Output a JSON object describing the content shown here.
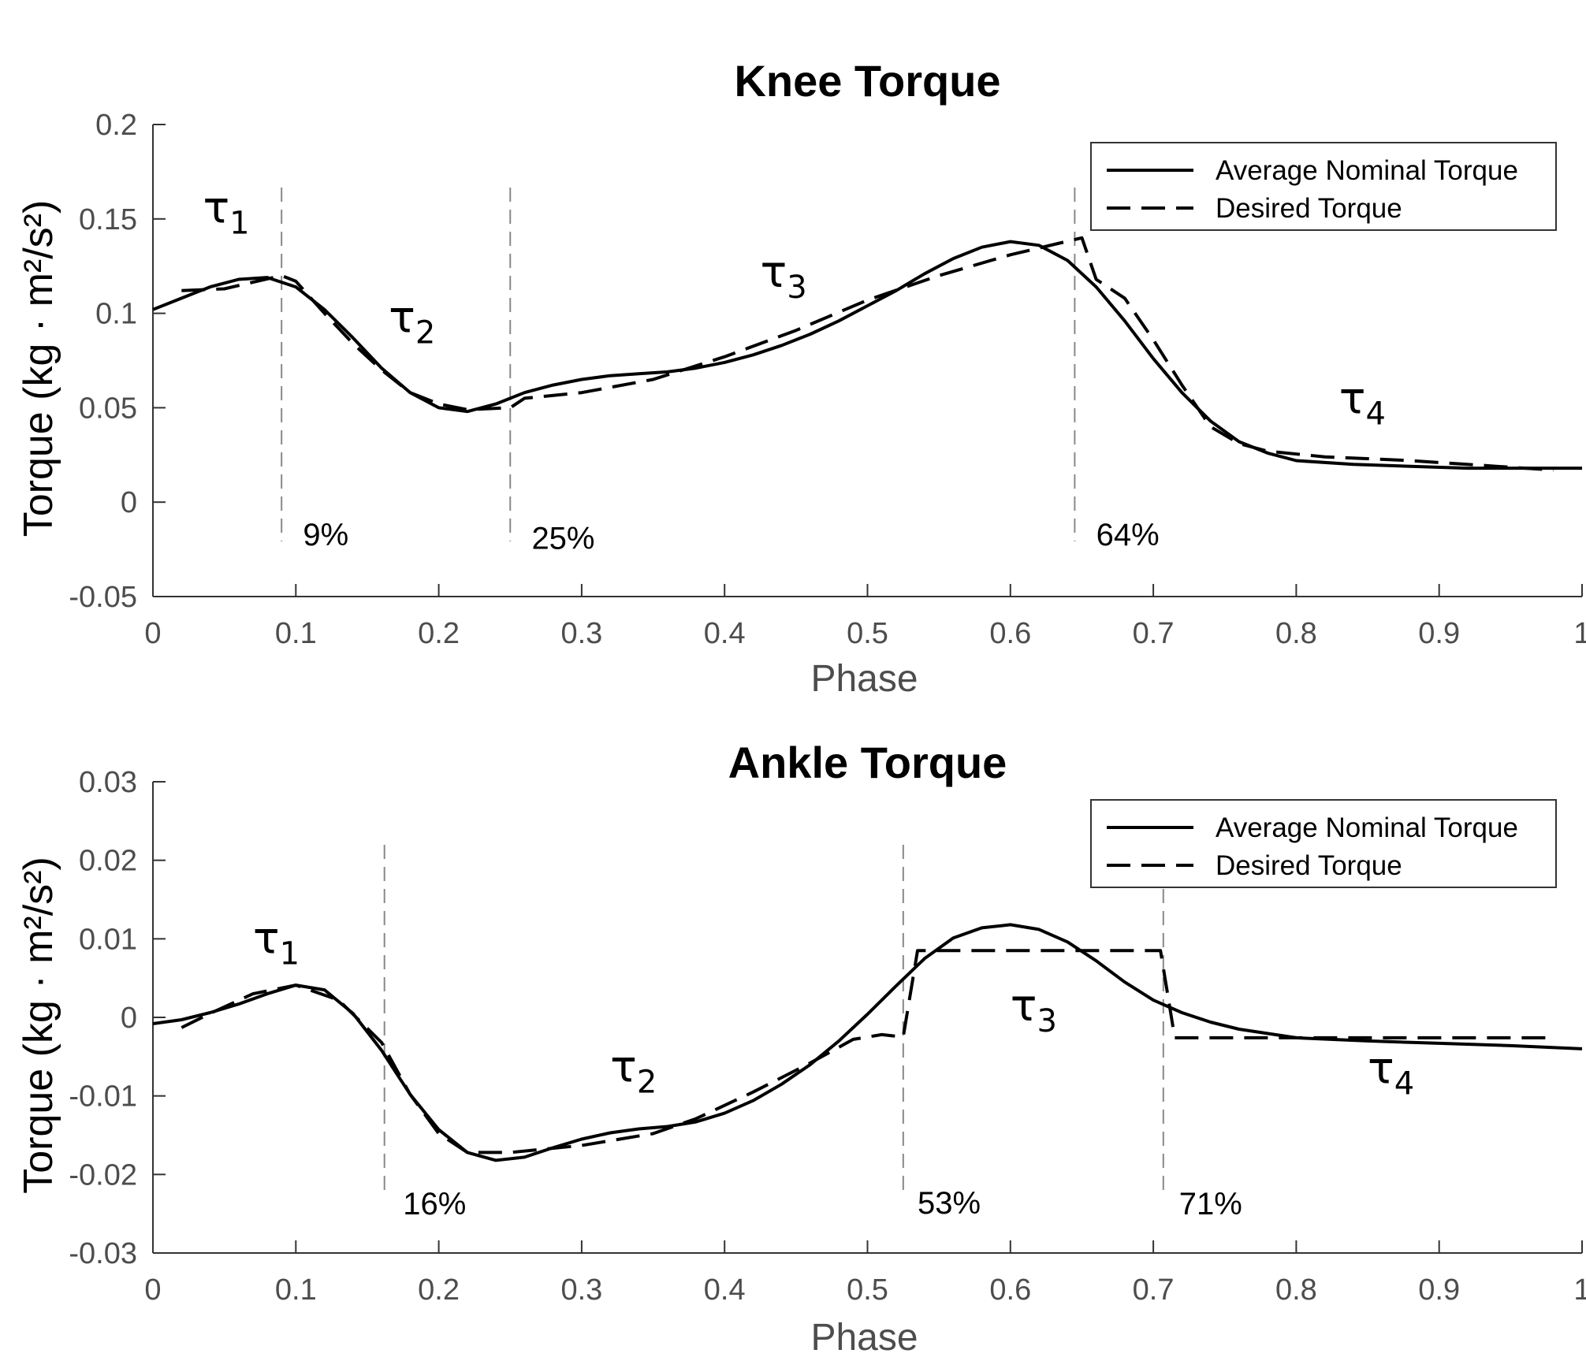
{
  "chart_data": [
    {
      "type": "line",
      "title": "Knee Torque",
      "xlabel": "Phase",
      "ylabel": "Torque (kg · m²/s²)",
      "xlim": [
        0,
        1
      ],
      "ylim": [
        -0.05,
        0.2
      ],
      "xticks": [
        "0",
        "0.1",
        "0.2",
        "0.3",
        "0.4",
        "0.5",
        "0.6",
        "0.7",
        "0.8",
        "0.9",
        "1"
      ],
      "yticks": [
        "-0.05",
        "0",
        "0.05",
        "0.1",
        "0.15",
        "0.2"
      ],
      "xtick_values": [
        0,
        0.1,
        0.2,
        0.3,
        0.4,
        0.5,
        0.6,
        0.7,
        0.8,
        0.9,
        1
      ],
      "ytick_values": [
        -0.05,
        0,
        0.05,
        0.1,
        0.15,
        0.2
      ],
      "legend": {
        "position": "top-right",
        "entries": [
          "Average Nominal Torque",
          "Desired Torque"
        ]
      },
      "series": [
        {
          "name": "Average Nominal Torque",
          "style": "solid",
          "x": [
            0,
            0.02,
            0.04,
            0.06,
            0.08,
            0.1,
            0.12,
            0.14,
            0.16,
            0.18,
            0.2,
            0.22,
            0.24,
            0.26,
            0.28,
            0.3,
            0.32,
            0.34,
            0.36,
            0.38,
            0.4,
            0.42,
            0.44,
            0.46,
            0.48,
            0.5,
            0.52,
            0.54,
            0.56,
            0.58,
            0.6,
            0.62,
            0.64,
            0.66,
            0.68,
            0.7,
            0.72,
            0.74,
            0.76,
            0.78,
            0.8,
            0.84,
            0.88,
            0.92,
            0.96,
            1.0
          ],
          "y": [
            0.102,
            0.108,
            0.114,
            0.118,
            0.119,
            0.114,
            0.102,
            0.087,
            0.071,
            0.058,
            0.05,
            0.048,
            0.052,
            0.058,
            0.062,
            0.065,
            0.067,
            0.068,
            0.069,
            0.071,
            0.074,
            0.078,
            0.083,
            0.089,
            0.096,
            0.104,
            0.112,
            0.121,
            0.129,
            0.135,
            0.138,
            0.136,
            0.128,
            0.114,
            0.096,
            0.076,
            0.058,
            0.043,
            0.032,
            0.026,
            0.022,
            0.02,
            0.019,
            0.018,
            0.018,
            0.018
          ]
        },
        {
          "name": "Desired Torque",
          "style": "dashed",
          "x": [
            0.02,
            0.05,
            0.09,
            0.1,
            0.12,
            0.14,
            0.16,
            0.18,
            0.2,
            0.22,
            0.25,
            0.26,
            0.3,
            0.35,
            0.4,
            0.45,
            0.5,
            0.55,
            0.6,
            0.65,
            0.66,
            0.68,
            0.7,
            0.72,
            0.74,
            0.76,
            0.78,
            0.82,
            0.88,
            0.94,
            0.98
          ],
          "y": [
            0.112,
            0.113,
            0.12,
            0.117,
            0.1,
            0.084,
            0.07,
            0.058,
            0.052,
            0.049,
            0.05,
            0.055,
            0.058,
            0.065,
            0.077,
            0.091,
            0.107,
            0.12,
            0.131,
            0.14,
            0.118,
            0.108,
            0.086,
            0.062,
            0.04,
            0.031,
            0.027,
            0.024,
            0.022,
            0.019,
            0.017
          ]
        }
      ],
      "vlines": [
        0.09,
        0.25,
        0.645
      ],
      "annotations": [
        {
          "text": "9%",
          "x": 0.105,
          "y": -0.017
        },
        {
          "text": "25%",
          "x": 0.265,
          "y": -0.019
        },
        {
          "text": "64%",
          "x": 0.66,
          "y": -0.017
        }
      ],
      "segment_labels": [
        {
          "symbol": "τ",
          "sub": "1",
          "x": 0.035,
          "y": 0.148
        },
        {
          "symbol": "τ",
          "sub": "2",
          "x": 0.165,
          "y": 0.09
        },
        {
          "symbol": "τ",
          "sub": "3",
          "x": 0.425,
          "y": 0.114
        },
        {
          "symbol": "τ",
          "sub": "4",
          "x": 0.83,
          "y": 0.047
        }
      ]
    },
    {
      "type": "line",
      "title": "Ankle Torque",
      "xlabel": "Phase",
      "ylabel": "Torque (kg · m²/s²)",
      "xlim": [
        0,
        1
      ],
      "ylim": [
        -0.03,
        0.03
      ],
      "xticks": [
        "0",
        "0.1",
        "0.2",
        "0.3",
        "0.4",
        "0.5",
        "0.6",
        "0.7",
        "0.8",
        "0.9",
        "1"
      ],
      "yticks": [
        "-0.03",
        "-0.02",
        "-0.01",
        "0",
        "0.01",
        "0.02",
        "0.03"
      ],
      "xtick_values": [
        0,
        0.1,
        0.2,
        0.3,
        0.4,
        0.5,
        0.6,
        0.7,
        0.8,
        0.9,
        1
      ],
      "ytick_values": [
        -0.03,
        -0.02,
        -0.01,
        0,
        0.01,
        0.02,
        0.03
      ],
      "legend": {
        "position": "top-right",
        "entries": [
          "Average Nominal Torque",
          "Desired Torque"
        ]
      },
      "series": [
        {
          "name": "Average Nominal Torque",
          "style": "solid",
          "x": [
            0,
            0.02,
            0.04,
            0.06,
            0.08,
            0.1,
            0.12,
            0.14,
            0.16,
            0.18,
            0.2,
            0.22,
            0.24,
            0.26,
            0.28,
            0.3,
            0.32,
            0.34,
            0.36,
            0.38,
            0.4,
            0.42,
            0.44,
            0.46,
            0.48,
            0.5,
            0.52,
            0.54,
            0.56,
            0.58,
            0.6,
            0.62,
            0.64,
            0.66,
            0.68,
            0.7,
            0.72,
            0.74,
            0.76,
            0.8,
            0.85,
            0.9,
            0.95,
            1.0
          ],
          "y": [
            -0.0008,
            -0.0003,
            0.0006,
            0.0017,
            0.003,
            0.0041,
            0.0035,
            0.0005,
            -0.0042,
            -0.0098,
            -0.0143,
            -0.0172,
            -0.0182,
            -0.0178,
            -0.0166,
            -0.0155,
            -0.0147,
            -0.0142,
            -0.0139,
            -0.0133,
            -0.0122,
            -0.0106,
            -0.0085,
            -0.006,
            -0.003,
            0.0004,
            0.004,
            0.0075,
            0.0101,
            0.0114,
            0.0118,
            0.0112,
            0.0096,
            0.0072,
            0.0045,
            0.0022,
            0.0006,
            -0.0006,
            -0.0015,
            -0.0026,
            -0.003,
            -0.0033,
            -0.0036,
            -0.004
          ]
        },
        {
          "name": "Desired Torque",
          "style": "dashed",
          "x": [
            0.02,
            0.04,
            0.07,
            0.1,
            0.13,
            0.16,
            0.18,
            0.2,
            0.22,
            0.25,
            0.3,
            0.35,
            0.38,
            0.42,
            0.46,
            0.49,
            0.51,
            0.525,
            0.535,
            0.6,
            0.705,
            0.715,
            0.8,
            0.9,
            0.98
          ],
          "y": [
            -0.0013,
            0.0005,
            0.003,
            0.0041,
            0.0022,
            -0.0032,
            -0.0098,
            -0.0148,
            -0.0172,
            -0.0172,
            -0.0163,
            -0.0148,
            -0.0129,
            -0.0095,
            -0.0058,
            -0.0028,
            -0.0022,
            -0.0025,
            0.0085,
            0.0085,
            0.0085,
            -0.0026,
            -0.0026,
            -0.0026,
            -0.0026
          ]
        }
      ],
      "vlines": [
        0.162,
        0.525,
        0.707
      ],
      "annotations": [
        {
          "text": "16%",
          "x": 0.175,
          "y": -0.0237
        },
        {
          "text": "53%",
          "x": 0.535,
          "y": -0.0236
        },
        {
          "text": "71%",
          "x": 0.718,
          "y": -0.0237
        }
      ],
      "segment_labels": [
        {
          "symbol": "τ",
          "sub": "1",
          "x": 0.07,
          "y": 0.0082
        },
        {
          "symbol": "τ",
          "sub": "2",
          "x": 0.32,
          "y": -0.0082
        },
        {
          "symbol": "τ",
          "sub": "3",
          "x": 0.6,
          "y": -0.0004
        },
        {
          "symbol": "τ",
          "sub": "4",
          "x": 0.85,
          "y": -0.0084
        }
      ]
    }
  ]
}
